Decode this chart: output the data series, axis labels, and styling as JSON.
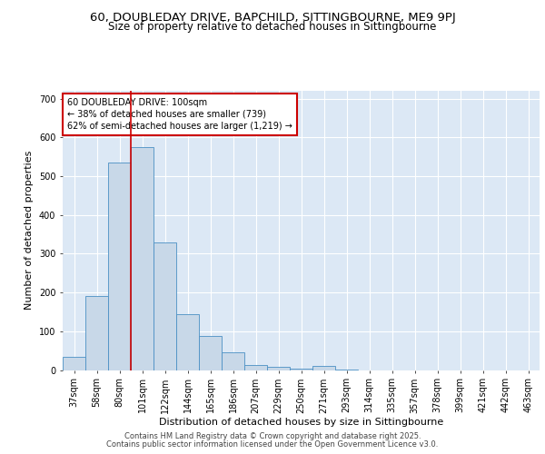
{
  "title_line1": "60, DOUBLEDAY DRIVE, BAPCHILD, SITTINGBOURNE, ME9 9PJ",
  "title_line2": "Size of property relative to detached houses in Sittingbourne",
  "xlabel": "Distribution of detached houses by size in Sittingbourne",
  "ylabel": "Number of detached properties",
  "categories": [
    "37sqm",
    "58sqm",
    "80sqm",
    "101sqm",
    "122sqm",
    "144sqm",
    "165sqm",
    "186sqm",
    "207sqm",
    "229sqm",
    "250sqm",
    "271sqm",
    "293sqm",
    "314sqm",
    "335sqm",
    "357sqm",
    "378sqm",
    "399sqm",
    "421sqm",
    "442sqm",
    "463sqm"
  ],
  "values": [
    33,
    192,
    535,
    575,
    330,
    143,
    87,
    45,
    13,
    9,
    4,
    10,
    1,
    0,
    0,
    0,
    0,
    0,
    0,
    0,
    0
  ],
  "bar_color": "#c8d8e8",
  "bar_edge_color": "#4a90c4",
  "vline_x_index": 3,
  "vline_color": "#cc0000",
  "annotation_line1": "60 DOUBLEDAY DRIVE: 100sqm",
  "annotation_line2": "← 38% of detached houses are smaller (739)",
  "annotation_line3": "62% of semi-detached houses are larger (1,219) →",
  "annotation_box_color": "#cc0000",
  "ylim": [
    0,
    720
  ],
  "yticks": [
    0,
    100,
    200,
    300,
    400,
    500,
    600,
    700
  ],
  "background_color": "#dce8f5",
  "grid_color": "#ffffff",
  "footer_line1": "Contains HM Land Registry data © Crown copyright and database right 2025.",
  "footer_line2": "Contains public sector information licensed under the Open Government Licence v3.0.",
  "title_fontsize": 9.5,
  "subtitle_fontsize": 8.5,
  "axis_label_fontsize": 8,
  "tick_fontsize": 7,
  "annotation_fontsize": 7,
  "footer_fontsize": 6
}
